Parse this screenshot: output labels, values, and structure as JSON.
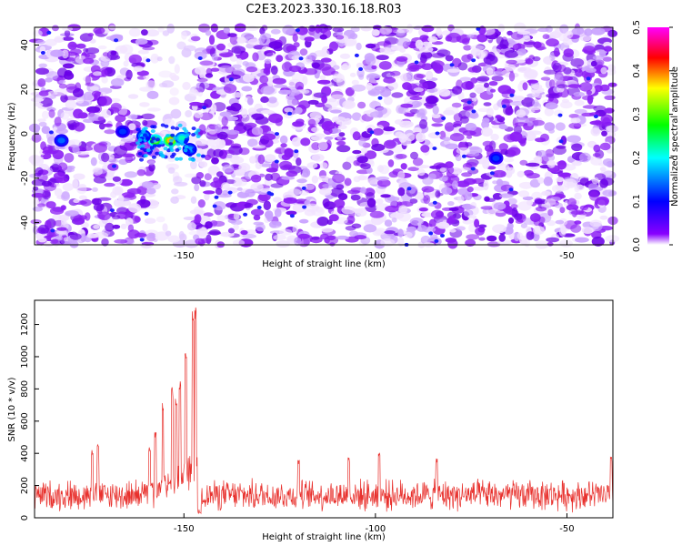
{
  "figure": {
    "title": "C2E3.2023.330.16.18.R03"
  },
  "chart_data": [
    {
      "type": "heatmap",
      "xlabel": "Height of straight line (km)",
      "ylabel": "Frequency (Hz)",
      "xlim": [
        -189,
        -38
      ],
      "ylim": [
        -50,
        48
      ],
      "xticks": [
        -150,
        -100,
        -50
      ],
      "yticks": [
        -40,
        -20,
        0,
        20,
        40
      ],
      "colorbar": {
        "label": "Normalized spectral amplitude",
        "range": [
          0.0,
          0.5
        ],
        "ticks": [
          0.0,
          0.1,
          0.2,
          0.3,
          0.4,
          0.5
        ],
        "colormap": [
          "#ffffff",
          "#8800ff",
          "#0000ff",
          "#00ffff",
          "#00ff00",
          "#ffff00",
          "#ff0000",
          "#ff00ff"
        ]
      },
      "features": {
        "background_level": 0.05,
        "gap_x_range": [
          -158,
          -147
        ],
        "hotspots": [
          {
            "x": -153.5,
            "y": -3,
            "value": 0.38
          },
          {
            "x": -157.5,
            "y": -3,
            "value": 0.33
          },
          {
            "x": -150.5,
            "y": -2,
            "value": 0.22
          },
          {
            "x": -160.5,
            "y": -1,
            "value": 0.18
          },
          {
            "x": -148.5,
            "y": -7,
            "value": 0.16
          },
          {
            "x": -182.0,
            "y": -3,
            "value": 0.14
          },
          {
            "x": -68.5,
            "y": -11,
            "value": 0.12
          },
          {
            "x": -166.0,
            "y": 1,
            "value": 0.12
          }
        ]
      }
    },
    {
      "type": "line",
      "xlabel": "Height of straight line (km)",
      "ylabel": "SNR (10 * v/v)",
      "xlim": [
        -189,
        -38
      ],
      "ylim": [
        0,
        1350
      ],
      "xticks": [
        -150,
        -100,
        -50
      ],
      "yticks": [
        0,
        200,
        400,
        600,
        800,
        1000,
        1200
      ],
      "series": [
        {
          "color": "#e8302c",
          "noise_floor": 140,
          "noise_spread": 110,
          "peaks": [
            {
              "x": -147.0,
              "value": 1350
            },
            {
              "x": -147.6,
              "value": 1290
            },
            {
              "x": -149.5,
              "value": 1040
            },
            {
              "x": -151.0,
              "value": 860
            },
            {
              "x": -153.0,
              "value": 830
            },
            {
              "x": -152.0,
              "value": 760
            },
            {
              "x": -155.5,
              "value": 740
            },
            {
              "x": -157.5,
              "value": 550
            },
            {
              "x": -159.0,
              "value": 460
            },
            {
              "x": -172.5,
              "value": 480
            },
            {
              "x": -174.0,
              "value": 420
            },
            {
              "x": -120.0,
              "value": 370
            },
            {
              "x": -107.0,
              "value": 380
            },
            {
              "x": -99.0,
              "value": 410
            },
            {
              "x": -84.0,
              "value": 370
            },
            {
              "x": -38.5,
              "value": 380
            }
          ],
          "dip": {
            "x_range": [
              -146.5,
              -145.5
            ],
            "value": 20
          }
        }
      ]
    }
  ]
}
